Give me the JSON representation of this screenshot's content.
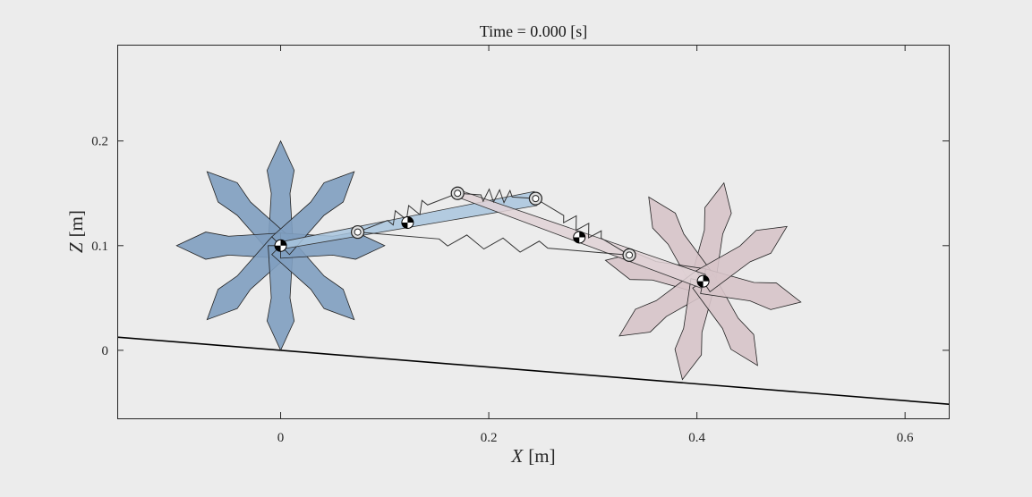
{
  "chart_data": {
    "type": "mechanism_animation_frame",
    "title": "Time = 0.000 [s]",
    "xlabel": {
      "var": "X",
      "unit": "[m]"
    },
    "ylabel": {
      "var": "Z",
      "unit": "[m]"
    },
    "xlim": [
      -0.157,
      0.642
    ],
    "ylim": [
      -0.065,
      0.292
    ],
    "xticks": [
      0,
      0.2,
      0.4,
      0.6
    ],
    "xtick_labels": [
      "0",
      "0.2",
      "0.4",
      "0.6"
    ],
    "yticks": [
      0,
      0.1,
      0.2
    ],
    "ytick_labels": [
      "0",
      "0.1",
      "0.2"
    ],
    "grid": false,
    "colors": {
      "background": "#ececec",
      "axes": "#262626",
      "front_wheel": "#7f9fc0",
      "front_link": "#a9c6de",
      "rear_wheel": "#d7c4c9",
      "rear_link": "#e0d2d6",
      "ground": "#000000"
    },
    "ground": {
      "x": [
        -0.157,
        0.642
      ],
      "z": [
        0.0126,
        -0.0515
      ]
    },
    "wheels": [
      {
        "name": "front",
        "center": [
          0.0,
          0.1
        ],
        "radius": 0.1,
        "spokes": 8,
        "angle_deg": 90,
        "color": "#7f9fc0"
      },
      {
        "name": "rear",
        "center": [
          0.406,
          0.066
        ],
        "radius": 0.096,
        "spokes": 8,
        "angle_deg": 78,
        "color": "#d7c4c9"
      }
    ],
    "links": [
      {
        "name": "front-link",
        "from": [
          0.0,
          0.1
        ],
        "to": [
          0.245,
          0.145
        ],
        "color": "#a9c6de"
      },
      {
        "name": "rear-link",
        "from": [
          0.17,
          0.15
        ],
        "to": [
          0.406,
          0.066
        ],
        "color": "#e0d2d6"
      }
    ],
    "joints": [
      {
        "name": "joint-1",
        "x": 0.074,
        "z": 0.113
      },
      {
        "name": "joint-2",
        "x": 0.17,
        "z": 0.15
      },
      {
        "name": "joint-3",
        "x": 0.245,
        "z": 0.145
      },
      {
        "name": "joint-4",
        "x": 0.335,
        "z": 0.091
      }
    ],
    "com_markers": [
      {
        "name": "com-front-wheel",
        "x": 0.0,
        "z": 0.1
      },
      {
        "name": "com-front-link",
        "x": 0.122,
        "z": 0.122
      },
      {
        "name": "com-rear-link",
        "x": 0.287,
        "z": 0.108
      },
      {
        "name": "com-rear-wheel",
        "x": 0.406,
        "z": 0.066
      }
    ],
    "springs": [
      {
        "name": "spring-1",
        "from": [
          0.074,
          0.113
        ],
        "to": [
          0.17,
          0.15
        ]
      },
      {
        "name": "spring-2",
        "from": [
          0.17,
          0.15
        ],
        "to": [
          0.245,
          0.145
        ]
      },
      {
        "name": "spring-3",
        "from": [
          0.245,
          0.145
        ],
        "to": [
          0.335,
          0.091
        ]
      },
      {
        "name": "spring-4",
        "from": [
          0.074,
          0.113
        ],
        "to": [
          0.335,
          0.091
        ]
      }
    ]
  }
}
